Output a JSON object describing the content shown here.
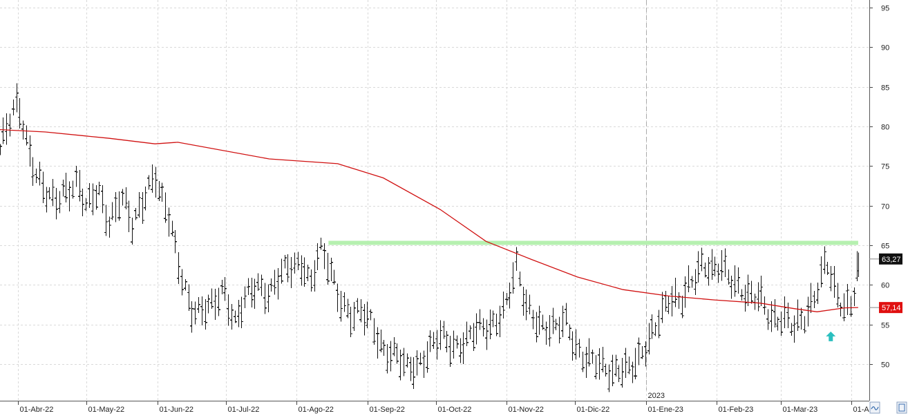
{
  "chart_data": {
    "type": "ohlc",
    "y_ticks": [
      50,
      55,
      60,
      65,
      70,
      75,
      80,
      85,
      90,
      95
    ],
    "ylim": [
      47,
      96
    ],
    "x_labels": [
      "01-Abr-22",
      "01-May-22",
      "01-Jun-22",
      "01-Jul-22",
      "01-Ago-22",
      "01-Sep-22",
      "01-Oct-22",
      "01-Nov-22",
      "01-Dic-22",
      "01-Ene-23",
      "01-Feb-23",
      "01-Mar-23",
      "01-A"
    ],
    "x_label_days": [
      0,
      30,
      61,
      91,
      122,
      153,
      183,
      214,
      244,
      275,
      306,
      334,
      365
    ],
    "year_marker": {
      "label": "2023",
      "day": 275
    },
    "last_price": {
      "label": "63,27",
      "value": 63.27
    },
    "ma_value": {
      "label": "57,14",
      "value": 57.14
    },
    "resistance": {
      "value": 65.3,
      "from_day": 136,
      "to_day": 368,
      "color": "#b6f0b0"
    },
    "moving_average": {
      "color": "#d01010",
      "days": [
        -8,
        12,
        40,
        60,
        70,
        110,
        140,
        160,
        185,
        205,
        225,
        245,
        265,
        285,
        305,
        325,
        340,
        350,
        362,
        368
      ],
      "values": [
        79.6,
        79.3,
        78.5,
        77.8,
        78.0,
        75.9,
        75.3,
        73.5,
        69.5,
        65.5,
        63.2,
        61.0,
        59.4,
        58.6,
        58.1,
        57.7,
        57.0,
        56.6,
        57.1,
        57.14
      ]
    },
    "price_anchors": {
      "days": [
        -8,
        -4,
        0,
        4,
        8,
        12,
        16,
        20,
        26,
        30,
        35,
        40,
        45,
        50,
        56,
        60,
        62,
        66,
        70,
        76,
        80,
        85,
        90,
        95,
        100,
        105,
        110,
        115,
        120,
        125,
        128,
        132,
        136,
        140,
        146,
        150,
        155,
        160,
        165,
        170,
        175,
        180,
        185,
        190,
        195,
        200,
        205,
        208,
        214,
        218,
        222,
        226,
        230,
        235,
        240,
        245,
        248,
        252,
        256,
        260,
        264,
        268,
        272,
        275,
        280,
        285,
        290,
        295,
        300,
        304,
        308,
        312,
        316,
        320,
        325,
        330,
        335,
        340,
        345,
        350,
        354,
        358,
        362,
        365,
        368
      ],
      "values": [
        77,
        80,
        83,
        78,
        74,
        71,
        70,
        72,
        73,
        69,
        72,
        68,
        71,
        67,
        72,
        74,
        71,
        68,
        63,
        57,
        56,
        57,
        60,
        55,
        58,
        60,
        59,
        61,
        62,
        63,
        60,
        64,
        62,
        59,
        56,
        56,
        55,
        52,
        51,
        49,
        50,
        52,
        53,
        52,
        53,
        54,
        54,
        55,
        58,
        62,
        57,
        56,
        55,
        54,
        55,
        52,
        51,
        50,
        49,
        49,
        50,
        49,
        50,
        52,
        56,
        58,
        57,
        61,
        63,
        61,
        62,
        61,
        60,
        58,
        58,
        56,
        56,
        54,
        56,
        60,
        63,
        58,
        57,
        58,
        63
      ]
    },
    "arrow": {
      "day": 356,
      "value": 53.5,
      "color": "#2bbfbf"
    }
  }
}
